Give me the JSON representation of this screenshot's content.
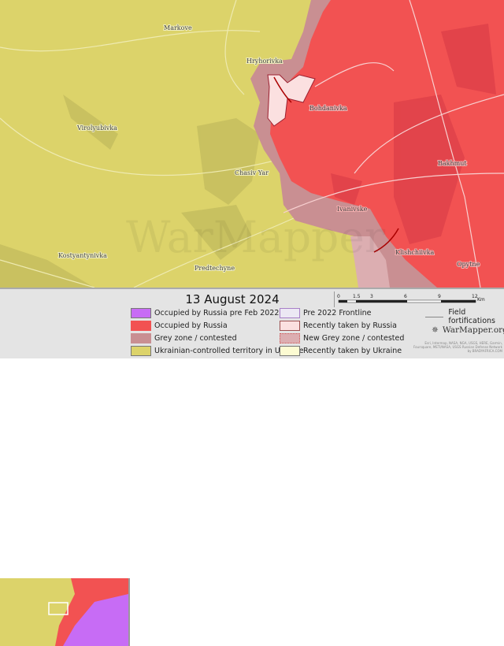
{
  "colors": {
    "occupied_pre2022": "#c76cf5",
    "occupied_russia": "#f25252",
    "grey_zone": "#c98f92",
    "ukraine": "#dcd36a",
    "pre2022_frontline": "#ece8f4",
    "recently_russia": "#fbe0e0",
    "new_grey_zone": "#dcaeb1",
    "recently_ukraine": "#fcfbd2"
  },
  "map": {
    "places": [
      "Markove",
      "Hryhorivka",
      "Virolyubivka",
      "Bohdanivka",
      "Chasiv Yar",
      "Bakhmut",
      "Ivanivske",
      "Opytne",
      "Klishchiivka",
      "Kostyantynivka",
      "Predtechyne"
    ],
    "watermark": "WarMapper"
  },
  "legend": {
    "date": "13 August 2024",
    "scale": {
      "ticks": [
        "0",
        "1.5",
        "3",
        "6",
        "9",
        "12"
      ],
      "unit": "Km"
    },
    "items": [
      {
        "label": "Occupied by Russia pre Feb 2022",
        "color_key": "occupied_pre2022"
      },
      {
        "label": "Occupied by Russia",
        "color_key": "occupied_russia"
      },
      {
        "label": "Grey zone / contested",
        "color_key": "grey_zone"
      },
      {
        "label": "Ukrainian-controlled territory in Ukraine",
        "color_key": "ukraine"
      },
      {
        "label": "Pre 2022 Frontline",
        "color_key": "pre2022_frontline"
      },
      {
        "label": "Recently taken by Russia",
        "color_key": "recently_russia"
      },
      {
        "label": "New Grey zone / contested",
        "color_key": "new_grey_zone"
      },
      {
        "label": "Recently taken by Ukraine",
        "color_key": "recently_ukraine"
      }
    ],
    "field_fortifications": "Field fortifications",
    "logo": "WarMapper.org",
    "credits": "Esri, Intermap, NASA, NGA, USGS, HERE, Garmin, Foursquare, METI/NASA, USGS Russian Defense Network by BRADYAFRICA.COM"
  }
}
